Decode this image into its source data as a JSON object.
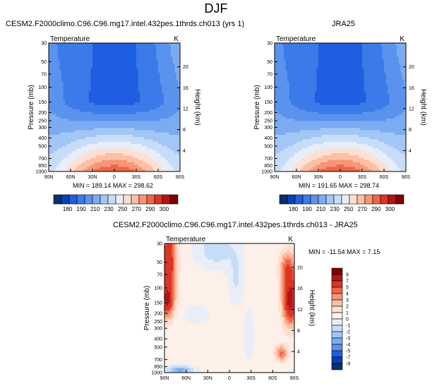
{
  "figure": {
    "title": "DJF"
  },
  "chart_data": [
    {
      "type": "heatmap",
      "title": "CESM2.F2000climo.C96.C96.mg17.intel.432pes.1thrds.ch013 (yrs 1)",
      "left_label": "Temperature",
      "right_label": "K",
      "xlabel": "",
      "ylabel": "Pressure (mb)",
      "ylabel_right": "Height (km)",
      "x_ticks": [
        "90N",
        "60N",
        "30N",
        "0",
        "30S",
        "60S",
        "90S"
      ],
      "y_ticks": [
        "30",
        "50",
        "70",
        "100",
        "150",
        "200",
        "250",
        "300",
        "400",
        "500",
        "700",
        "850",
        "1000"
      ],
      "y_right_ticks": [
        "20",
        "16",
        "12",
        "8",
        "4"
      ],
      "stats": "MIN = 189.14   MAX = 298.62",
      "colorbar_labels": [
        "180",
        "190",
        "210",
        "230",
        "250",
        "270",
        "290",
        "300"
      ],
      "colorbar_colors": [
        "#08306b",
        "#0a3fb8",
        "#1f5ee0",
        "#3b7ae8",
        "#5a93ee",
        "#7cabf2",
        "#a2c6f6",
        "#c7dcf8",
        "#e8eef8",
        "#fde0d2",
        "#fbbfa6",
        "#f79676",
        "#ef6548",
        "#dc3523",
        "#b5131a",
        "#7f0000"
      ],
      "value_range": [
        180,
        300
      ]
    },
    {
      "type": "heatmap",
      "title": "JRA25",
      "left_label": "Temperature",
      "right_label": "K",
      "xlabel": "",
      "ylabel": "Pressure (mb)",
      "ylabel_right": "Height (km)",
      "x_ticks": [
        "90N",
        "60N",
        "30N",
        "0",
        "30S",
        "60S",
        "90S"
      ],
      "y_ticks": [
        "30",
        "50",
        "70",
        "100",
        "150",
        "200",
        "250",
        "300",
        "400",
        "500",
        "700",
        "850",
        "1000"
      ],
      "y_right_ticks": [
        "20",
        "16",
        "12",
        "8",
        "4"
      ],
      "stats": "MIN = 191.65   MAX = 298.74",
      "colorbar_labels": [
        "180",
        "190",
        "210",
        "230",
        "250",
        "270",
        "290",
        "300"
      ],
      "colorbar_colors": [
        "#08306b",
        "#0a3fb8",
        "#1f5ee0",
        "#3b7ae8",
        "#5a93ee",
        "#7cabf2",
        "#a2c6f6",
        "#c7dcf8",
        "#e8eef8",
        "#fde0d2",
        "#fbbfa6",
        "#f79676",
        "#ef6548",
        "#dc3523",
        "#b5131a",
        "#7f0000"
      ],
      "value_range": [
        180,
        300
      ]
    },
    {
      "type": "heatmap",
      "title": "CESM2.F2000climo.C96.C96.mg17.intel.432pes.1thrds.ch013 - JRA25",
      "left_label": "Temperature",
      "right_label": "K",
      "xlabel": "",
      "ylabel": "Pressure (mb)",
      "ylabel_right": "Height (km)",
      "x_ticks": [
        "90N",
        "60N",
        "30N",
        "0",
        "30S",
        "60S",
        "90S"
      ],
      "y_ticks": [
        "30",
        "50",
        "70",
        "100",
        "150",
        "200",
        "250",
        "300",
        "400",
        "500",
        "700",
        "850",
        "1000"
      ],
      "y_right_ticks": [
        "20",
        "16",
        "12",
        "8",
        "4"
      ],
      "stats": "MIN = -11.54  MAX =  7.15",
      "colorbar_labels": [
        "9",
        "7",
        "5",
        "4",
        "3",
        "2",
        "1",
        "0",
        "-1",
        "-2",
        "-3",
        "-4",
        "-5",
        "-7",
        "-9"
      ],
      "colorbar_colors": [
        "#7f0000",
        "#b5131a",
        "#dc3523",
        "#ef6548",
        "#f79676",
        "#fbbfa6",
        "#fde0d2",
        "#fdf0e8",
        "#e8eef8",
        "#c7dcf8",
        "#a2c6f6",
        "#7cabf2",
        "#5a93ee",
        "#1f5ee0",
        "#0a3fb8",
        "#08306b"
      ],
      "value_range": [
        -10,
        10
      ]
    }
  ]
}
